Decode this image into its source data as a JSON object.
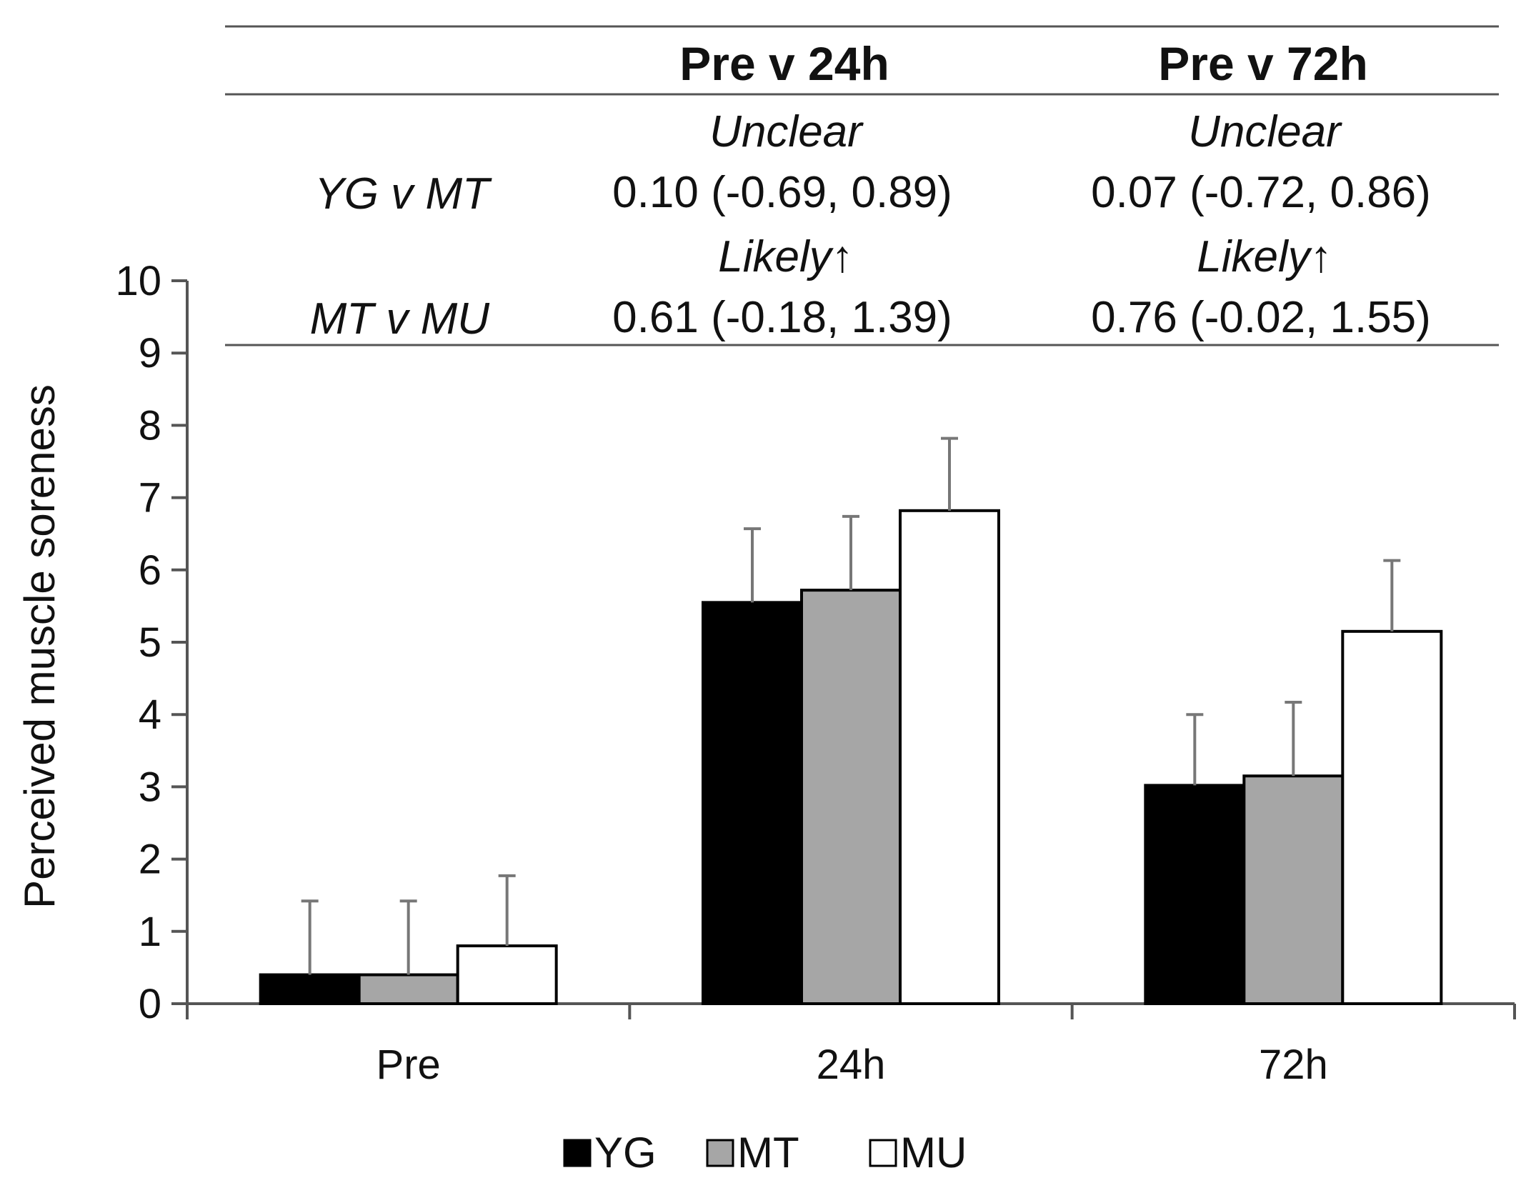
{
  "chart_data": {
    "type": "bar",
    "title": "",
    "xlabel": "",
    "ylabel": "Perceived muscle soreness",
    "ylim": [
      0,
      10
    ],
    "yticks": [
      "0",
      "1",
      "2",
      "3",
      "4",
      "5",
      "6",
      "7",
      "8",
      "9",
      "10"
    ],
    "grid": false,
    "legend_position": "bottom-center",
    "categories": [
      "Pre",
      "24h",
      "72h"
    ],
    "series": [
      {
        "name": "YG",
        "color": "#000000",
        "values": [
          0.4,
          5.55,
          3.02
        ],
        "errors": [
          1.02,
          1.02,
          0.98
        ]
      },
      {
        "name": "MT",
        "color": "#a6a6a6",
        "values": [
          0.4,
          5.72,
          3.15
        ],
        "errors": [
          1.02,
          1.02,
          1.02
        ]
      },
      {
        "name": "MU",
        "color": "#ffffff",
        "values": [
          0.8,
          6.82,
          5.15
        ],
        "errors": [
          0.97,
          1.0,
          0.98
        ]
      }
    ]
  },
  "stats_table": {
    "headers": [
      "Pre v 24h",
      "Pre v 72h"
    ],
    "rows": [
      {
        "label": "YG v MT",
        "qualifiers": [
          "Unclear",
          "Unclear"
        ],
        "values": [
          "0.10 (-0.69, 0.89)",
          "0.07 (-0.72, 0.86)"
        ]
      },
      {
        "label": "MT v MU",
        "qualifiers": [
          "Likely↑",
          "Likely↑"
        ],
        "values": [
          "0.61 (-0.18, 1.39)",
          "0.76 (-0.02, 1.55)"
        ]
      }
    ]
  },
  "legend": {
    "items": [
      "YG",
      "MT",
      "MU"
    ]
  }
}
